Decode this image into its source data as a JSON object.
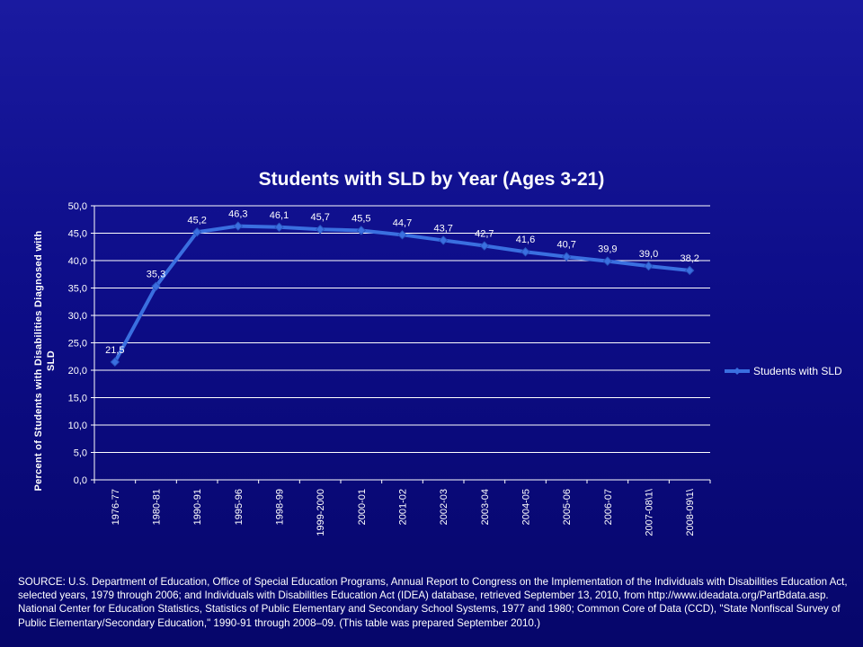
{
  "chart_data": {
    "type": "line",
    "title": "Students with SLD by Year (Ages 3-21)",
    "ylabel": "Percent of Students with Disabilities Diagnosed with SLD",
    "xlabel": "",
    "ylim": [
      0,
      50
    ],
    "y_ticks": [
      "0,0",
      "5,0",
      "10,0",
      "15,0",
      "20,0",
      "25,0",
      "30,0",
      "35,0",
      "40,0",
      "45,0",
      "50,0"
    ],
    "grid": true,
    "legend_position": "right",
    "categories": [
      "1976-77",
      "1980-81",
      "1990-91",
      "1995-96",
      "1998-99",
      "1999-2000",
      "2000-01",
      "2001-02",
      "2002-03",
      "2003-04",
      "2004-05",
      "2005-06",
      "2006-07",
      "2007-08\\1\\",
      "2008-09\\1\\"
    ],
    "series": [
      {
        "name": "Students with SLD",
        "color": "#3a6fe0",
        "values": [
          21.5,
          35.3,
          45.2,
          46.3,
          46.1,
          45.7,
          45.5,
          44.7,
          43.7,
          42.7,
          41.6,
          40.7,
          39.9,
          39.0,
          38.2
        ],
        "labels": [
          "21,5",
          "35,3",
          "45,2",
          "46,3",
          "46,1",
          "45,7",
          "45,5",
          "44,7",
          "43,7",
          "42,7",
          "41,6",
          "40,7",
          "39,9",
          "39,0",
          "38,2"
        ]
      }
    ]
  },
  "source_text": "SOURCE: U.S. Department of Education, Office of Special Education Programs, Annual Report to Congress on the Implementation of the Individuals with Disabilities Education Act, selected years, 1979 through 2006; and Individuals with Disabilities Education Act (IDEA) database, retrieved September 13, 2010, from http://www.ideadata.org/PartBdata.asp. National Center for Education Statistics, Statistics of Public Elementary and Secondary School Systems, 1977 and 1980; Common Core of Data (CCD), \"State Nonfiscal Survey of Public Elementary/Secondary Education,\" 1990-91 through 2008–09. (This table was prepared September 2010.)"
}
